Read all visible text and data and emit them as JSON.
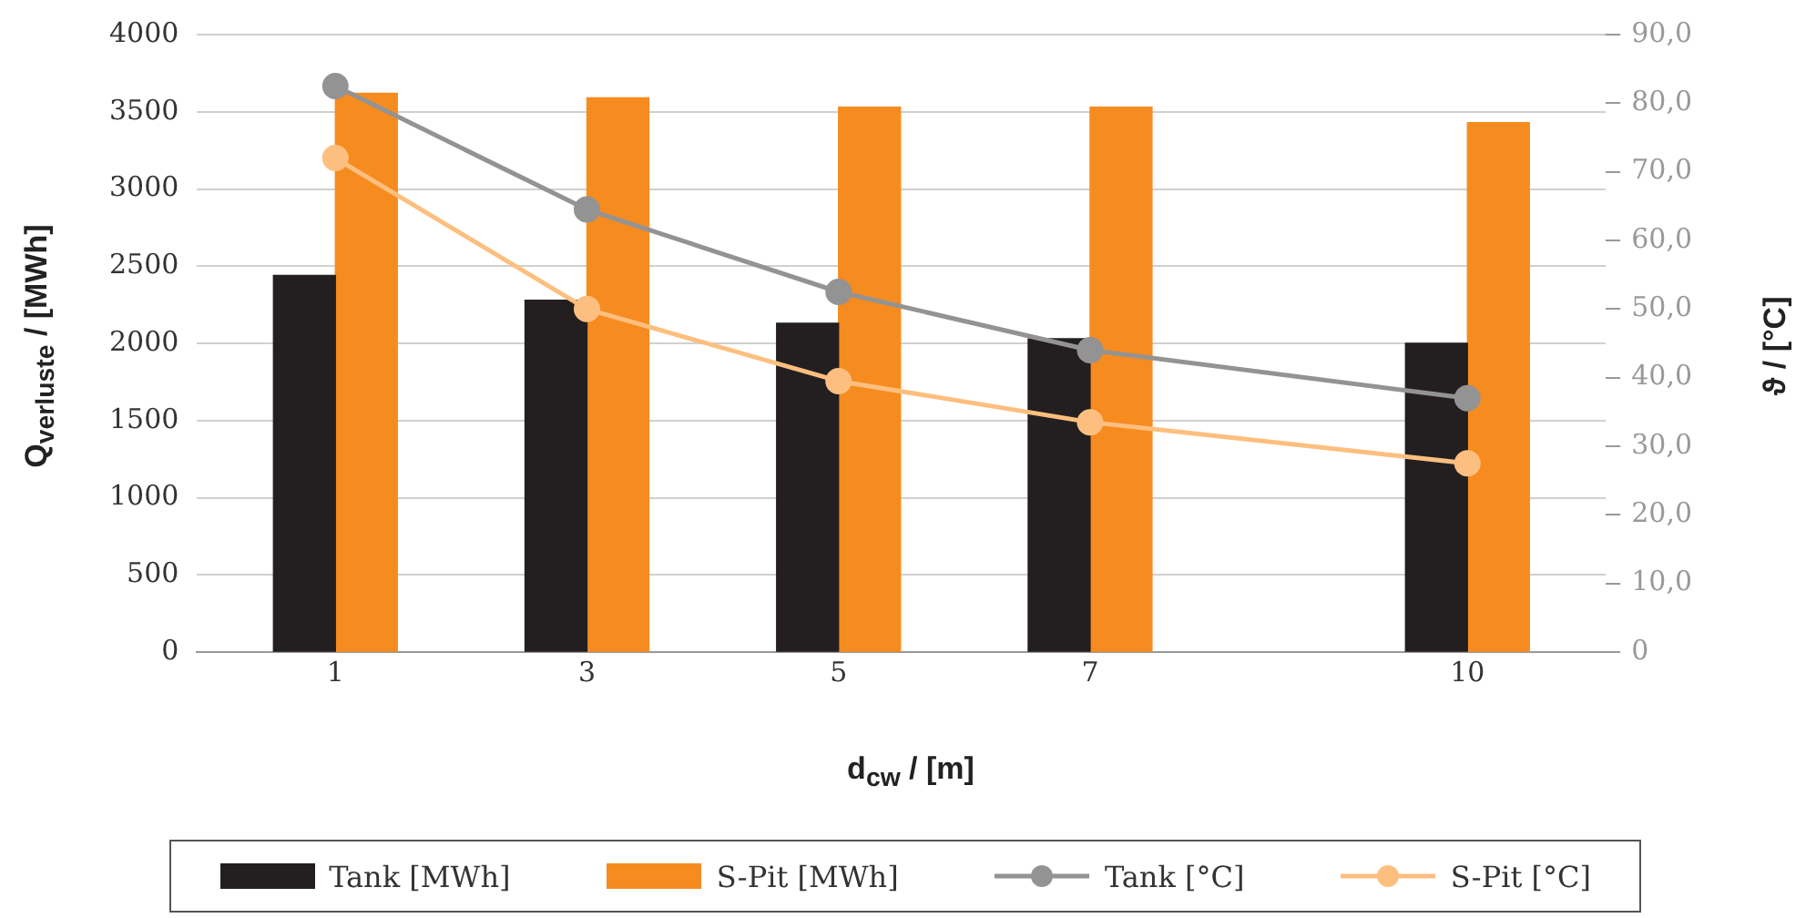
{
  "chart_data": {
    "type": "bar",
    "xlabel": "d$_{cw}$ / [m]",
    "ylabel": "Q$_{verluste}$ / [MWh]",
    "y2label": "ϑ / [°C]",
    "x": [
      1,
      3,
      5,
      7,
      10
    ],
    "xlim": [
      -0.1,
      11.1
    ],
    "xticks": [
      1,
      3,
      5,
      7,
      10
    ],
    "ylim": [
      0,
      4000
    ],
    "yticks": [
      0,
      500,
      1000,
      1500,
      2000,
      2500,
      3000,
      3500,
      4000
    ],
    "y2lim": [
      0,
      90
    ],
    "y2ticks": [
      {
        "value": 0,
        "label": "0"
      },
      {
        "value": 10,
        "label": "10,0"
      },
      {
        "value": 20,
        "label": "20,0"
      },
      {
        "value": 30,
        "label": "30,0"
      },
      {
        "value": 40,
        "label": "40,0"
      },
      {
        "value": 50,
        "label": "50,0"
      },
      {
        "value": 60,
        "label": "60,0"
      },
      {
        "value": 70,
        "label": "70,0"
      },
      {
        "value": 80,
        "label": "80,0"
      },
      {
        "value": 90,
        "label": "90,0"
      }
    ],
    "grid": "y",
    "legend": "bottom",
    "marker": "circle",
    "series": [
      {
        "name": "Tank [MWh]",
        "color": "#231f20",
        "values": [
          2440,
          2280,
          2130,
          2030,
          2000
        ]
      },
      {
        "name": "S-Pit [MWh]",
        "color": "#f68b1f",
        "values": [
          3620,
          3590,
          3530,
          3530,
          3430
        ]
      },
      {
        "name": "Tank [°C]",
        "type": "line",
        "axis": "y2",
        "color": "#939393",
        "values": [
          82.5,
          64.5,
          52.5,
          44.0,
          37.0
        ]
      },
      {
        "name": "S-Pit [°C]",
        "type": "line",
        "axis": "y2",
        "color": "#fdbf7f",
        "values": [
          72.0,
          50.0,
          39.5,
          33.5,
          27.5
        ]
      }
    ]
  }
}
